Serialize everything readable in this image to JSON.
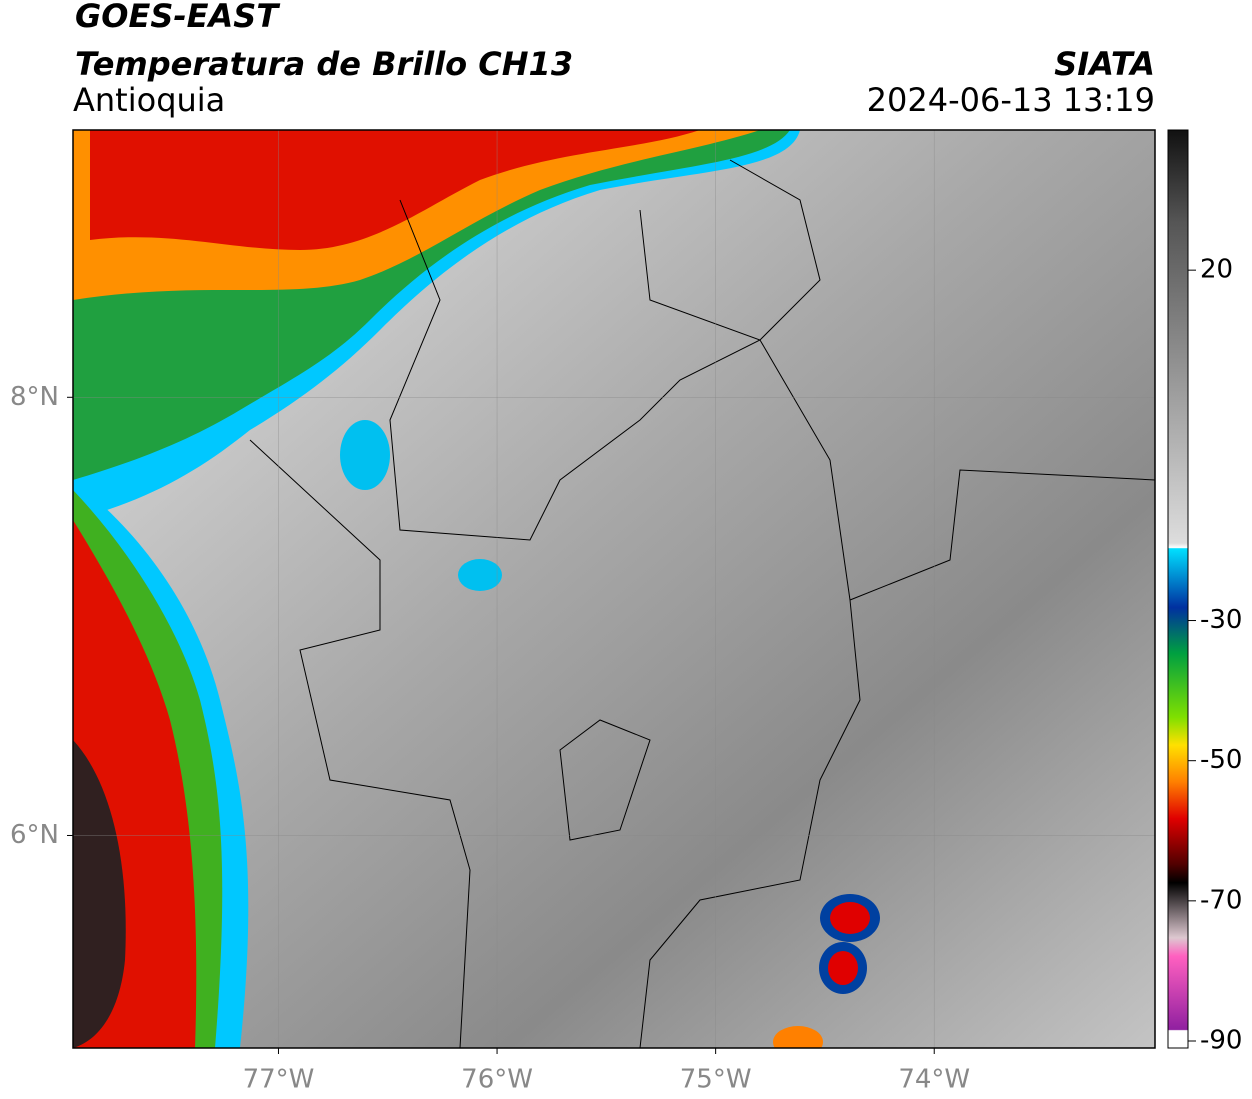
{
  "chart_data": {
    "type": "map",
    "title": "GOES-EAST",
    "subtitle": "Temperatura de Brillo CH13",
    "region": "Antioquia",
    "source": "SIATA",
    "datetime": "2024-06-13 13:19",
    "xlim": [
      -77.94,
      -72.99
    ],
    "ylim": [
      5.03,
      9.22
    ],
    "xticks": [
      {
        "value": -77,
        "label": "77°W"
      },
      {
        "value": -76,
        "label": "76°W"
      },
      {
        "value": -75,
        "label": "75°W"
      },
      {
        "value": -74,
        "label": "74°W"
      }
    ],
    "yticks": [
      {
        "value": 6,
        "label": "6°N"
      },
      {
        "value": 8,
        "label": "8°N"
      }
    ],
    "grid": true,
    "colorbar": {
      "lim": [
        -91,
        40
      ],
      "ticks": [
        20,
        -30,
        -50,
        -70,
        -90
      ]
    }
  }
}
